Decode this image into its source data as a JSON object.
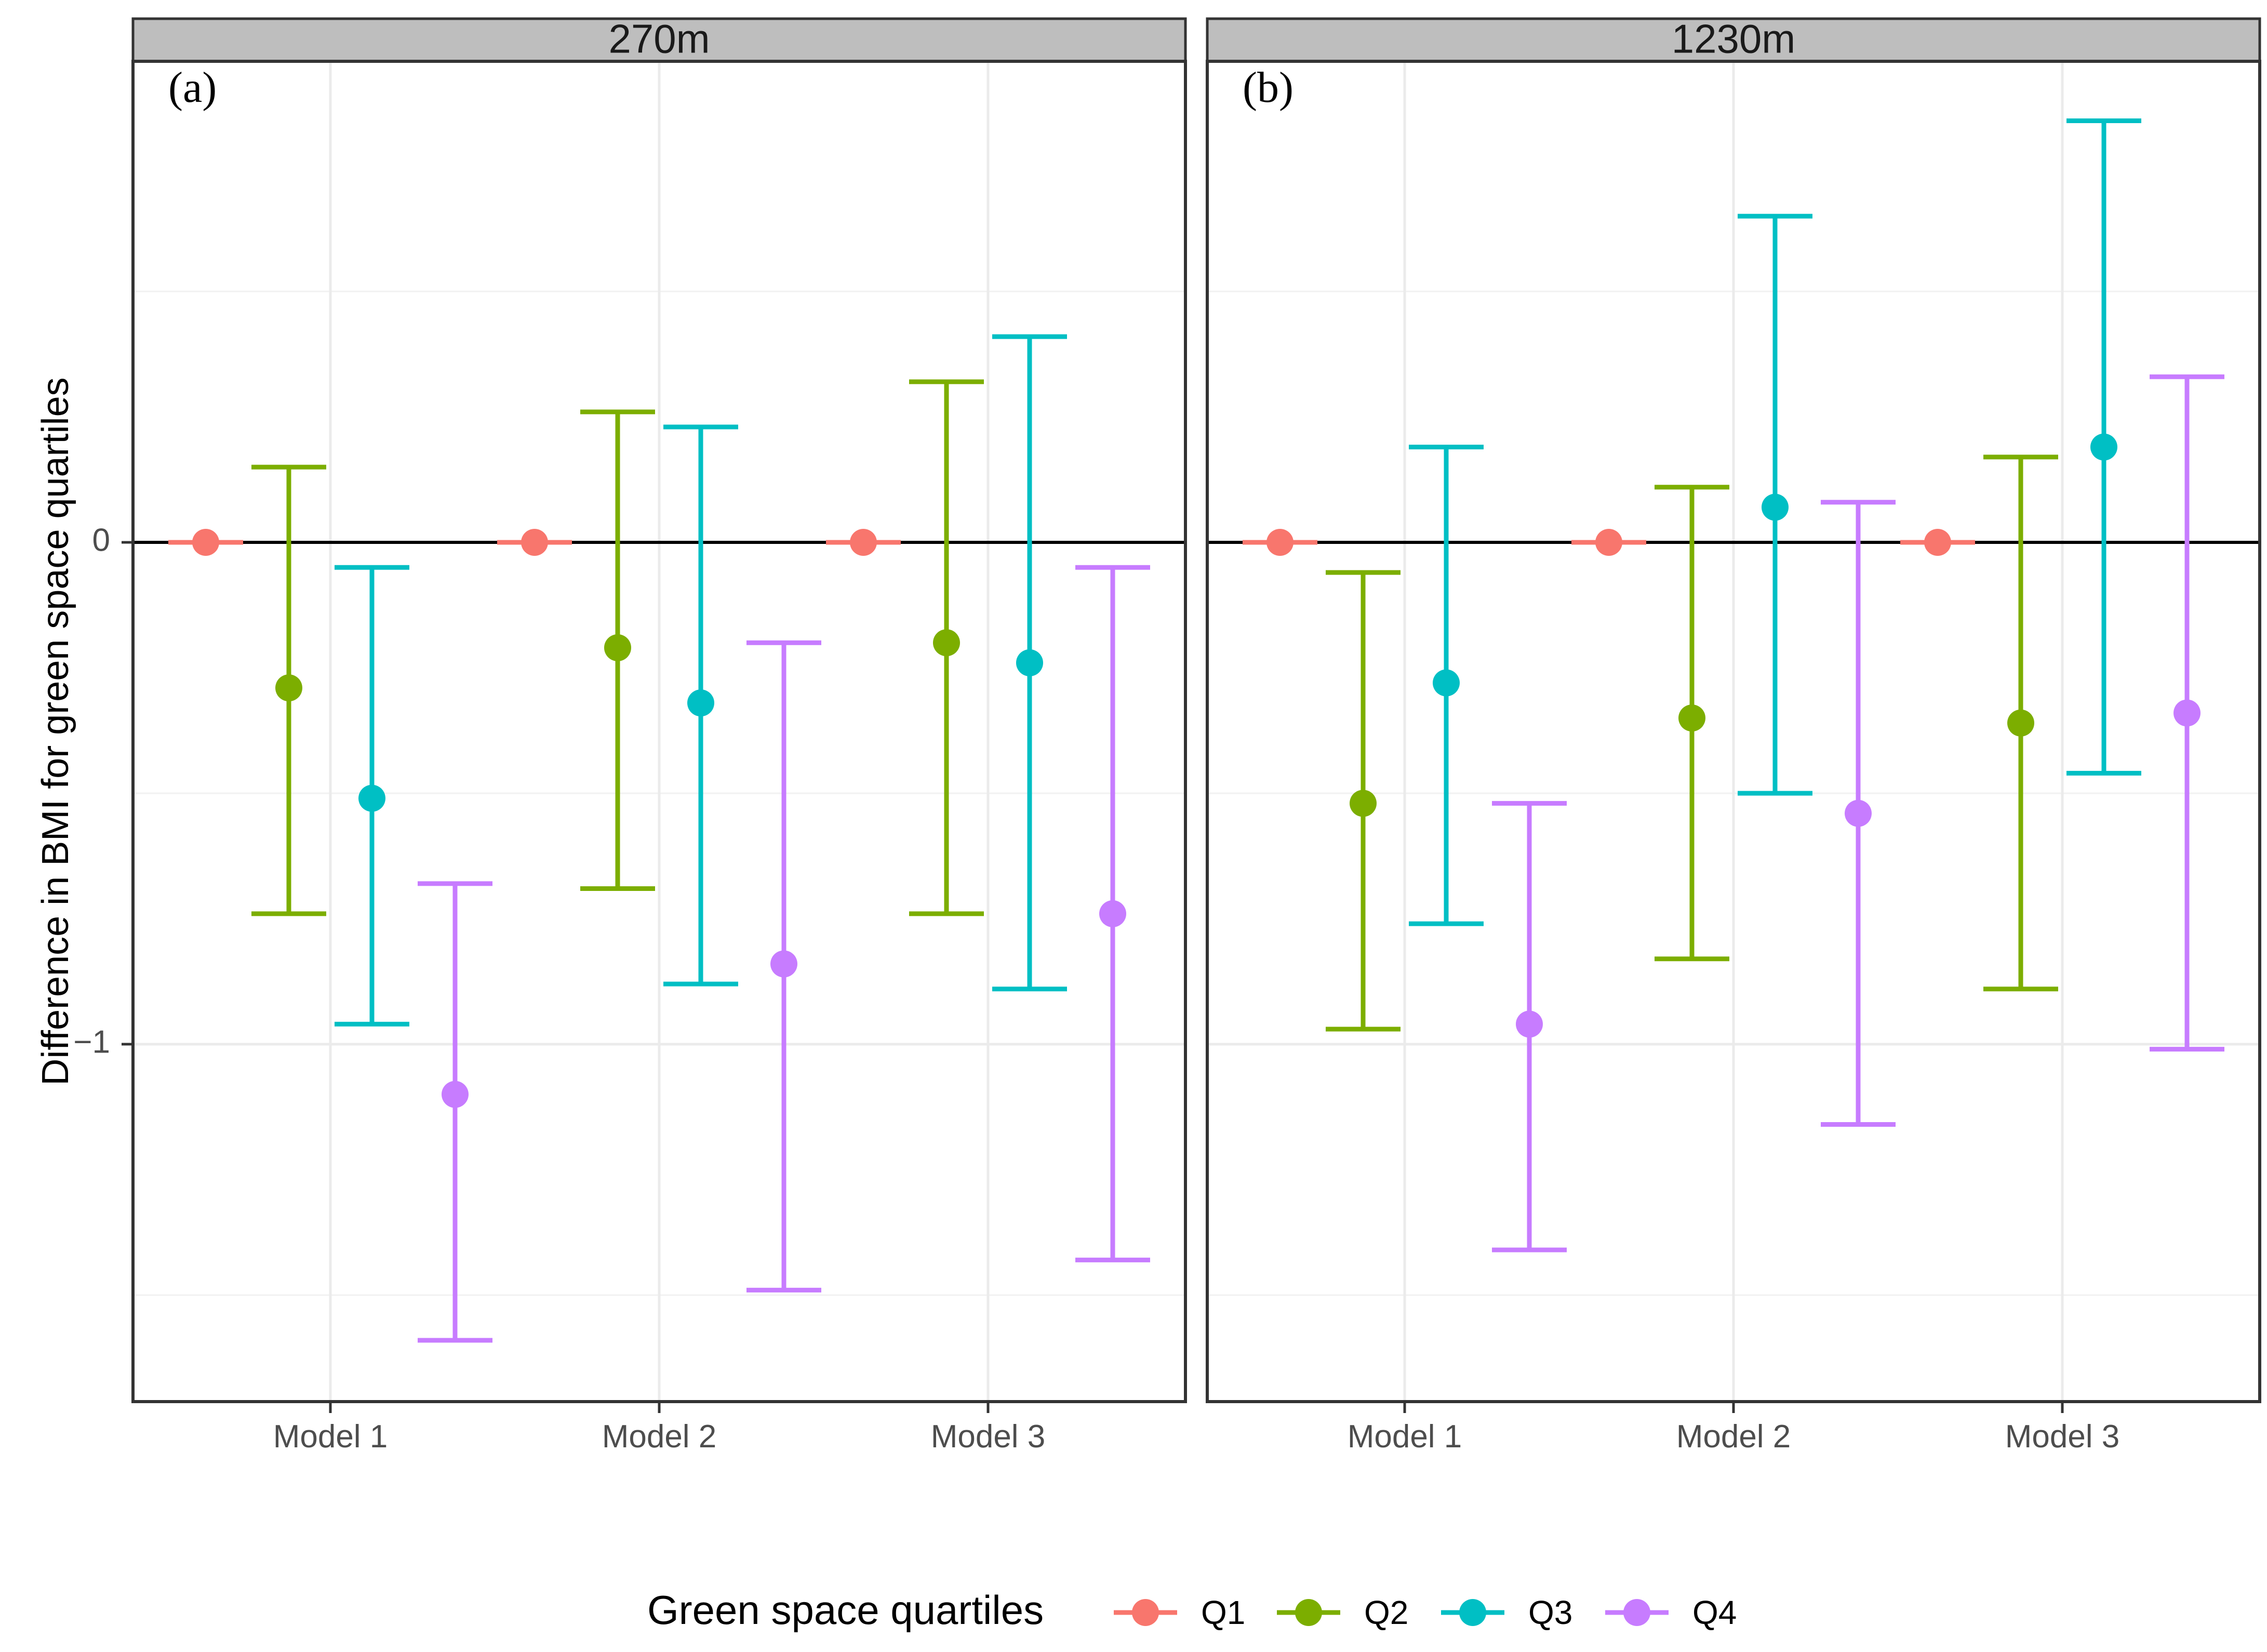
{
  "chart_data": {
    "type": "errorbar",
    "ylabel": "Difference in BMI for green space quartiles",
    "xlabel": "",
    "ylim": [
      -1.7,
      0.95
    ],
    "y_ticks": [
      {
        "value": 0,
        "label": "0"
      },
      {
        "value": -1,
        "label": "−1"
      }
    ],
    "y_minor_gridlines": [
      0.5,
      -0.5,
      -1.5
    ],
    "reference_line": 0,
    "categories": [
      "Model 1",
      "Model 2",
      "Model 3"
    ],
    "legend": {
      "title": "Green space quartiles",
      "position": "bottom",
      "entries": [
        {
          "name": "Q1",
          "color": "#F8766D"
        },
        {
          "name": "Q2",
          "color": "#7CAE00"
        },
        {
          "name": "Q3",
          "color": "#00BFC4"
        },
        {
          "name": "Q4",
          "color": "#C77CFF"
        }
      ]
    },
    "panels": [
      {
        "strip": "270m",
        "tag": "(a)",
        "series": [
          {
            "name": "Q1",
            "estimates": [
              0,
              0,
              0
            ],
            "lower": [
              0,
              0,
              0
            ],
            "upper": [
              0,
              0,
              0
            ]
          },
          {
            "name": "Q2",
            "estimates": [
              -0.29,
              -0.21,
              -0.2
            ],
            "lower": [
              -0.74,
              -0.69,
              -0.74
            ],
            "upper": [
              0.15,
              0.26,
              0.32
            ]
          },
          {
            "name": "Q3",
            "estimates": [
              -0.51,
              -0.32,
              -0.24
            ],
            "lower": [
              -0.96,
              -0.88,
              -0.89
            ],
            "upper": [
              -0.05,
              0.23,
              0.41
            ]
          },
          {
            "name": "Q4",
            "estimates": [
              -1.1,
              -0.84,
              -0.74
            ],
            "lower": [
              -1.59,
              -1.49,
              -1.43
            ],
            "upper": [
              -0.68,
              -0.2,
              -0.05
            ]
          }
        ]
      },
      {
        "strip": "1230m",
        "tag": "(b)",
        "series": [
          {
            "name": "Q1",
            "estimates": [
              0,
              0,
              0
            ],
            "lower": [
              0,
              0,
              0
            ],
            "upper": [
              0,
              0,
              0
            ]
          },
          {
            "name": "Q2",
            "estimates": [
              -0.52,
              -0.35,
              -0.36
            ],
            "lower": [
              -0.97,
              -0.83,
              -0.89
            ],
            "upper": [
              -0.06,
              0.11,
              0.17
            ]
          },
          {
            "name": "Q3",
            "estimates": [
              -0.28,
              0.07,
              0.19
            ],
            "lower": [
              -0.76,
              -0.5,
              -0.46
            ],
            "upper": [
              0.19,
              0.65,
              0.84
            ]
          },
          {
            "name": "Q4",
            "estimates": [
              -0.96,
              -0.54,
              -0.34
            ],
            "lower": [
              -1.41,
              -1.16,
              -1.01
            ],
            "upper": [
              -0.52,
              0.08,
              0.33
            ]
          }
        ]
      }
    ]
  }
}
